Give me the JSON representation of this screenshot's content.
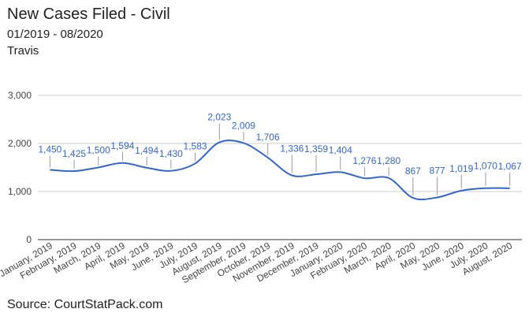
{
  "header": {
    "title": "New Cases Filed - Civil",
    "date_range": "01/2019 - 08/2020",
    "region": "Travis"
  },
  "footer": {
    "source": "Source: CourtStatPack.com"
  },
  "colors": {
    "line": "#3366cc",
    "grid": "#cccccc",
    "axis": "#333333",
    "label": "#3366cc"
  },
  "chart_data": {
    "type": "line",
    "title": "New Cases Filed - Civil",
    "xlabel": "",
    "ylabel": "",
    "ylim": [
      0,
      3000
    ],
    "yticks": [
      0,
      1000,
      2000,
      3000
    ],
    "ytick_labels": [
      "0",
      "1,000",
      "2,000",
      "3,000"
    ],
    "grid": true,
    "legend": "none",
    "categories": [
      "January, 2019",
      "February, 2019",
      "March, 2019",
      "April, 2019",
      "May, 2019",
      "June, 2019",
      "July, 2019",
      "August, 2019",
      "September, 2019",
      "October, 2019",
      "November, 2019",
      "December, 2019",
      "January, 2020",
      "February, 2020",
      "March, 2020",
      "April, 2020",
      "May, 2020",
      "June, 2020",
      "July, 2020",
      "August, 2020"
    ],
    "series": [
      {
        "name": "New Cases Filed",
        "values": [
          1450,
          1425,
          1500,
          1594,
          1494,
          1430,
          1583,
          2023,
          2009,
          1706,
          1336,
          1359,
          1404,
          1276,
          1280,
          867,
          877,
          1019,
          1070,
          1067
        ],
        "labels": [
          "1,450",
          "1,425",
          "1,500",
          "1,594",
          "1,494",
          "1,430",
          "1,583",
          "2,023",
          "2,009",
          "1,706",
          "1,336",
          "1,359",
          "1,404",
          "1,276",
          "1,280",
          "867",
          "877",
          "1,019",
          "1,070",
          "1,067"
        ]
      }
    ]
  }
}
